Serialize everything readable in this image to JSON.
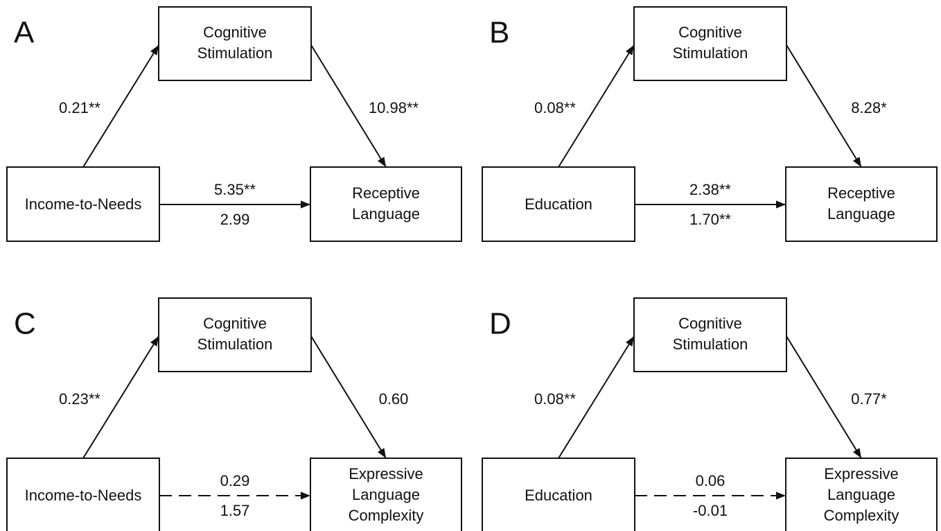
{
  "panels": [
    {
      "letter": "A",
      "predictor": [
        "Income-to-Needs"
      ],
      "mediator": [
        "Cognitive",
        "Stimulation"
      ],
      "outcome": [
        "Receptive",
        "Language"
      ],
      "a": "0.21**",
      "b": "10.98**",
      "c": "5.35**",
      "c_prime": "2.99",
      "direct_path_style": "solid"
    },
    {
      "letter": "B",
      "predictor": [
        "Education"
      ],
      "mediator": [
        "Cognitive",
        "Stimulation"
      ],
      "outcome": [
        "Receptive",
        "Language"
      ],
      "a": "0.08**",
      "b": "8.28*",
      "c": "2.38**",
      "c_prime": "1.70**",
      "direct_path_style": "solid"
    },
    {
      "letter": "C",
      "predictor": [
        "Income-to-Needs"
      ],
      "mediator": [
        "Cognitive",
        "Stimulation"
      ],
      "outcome": [
        "Expressive",
        "Language",
        "Complexity"
      ],
      "a": "0.23**",
      "b": "0.60",
      "c": "0.29",
      "c_prime": "1.57",
      "direct_path_style": "dashed"
    },
    {
      "letter": "D",
      "predictor": [
        "Education"
      ],
      "mediator": [
        "Cognitive",
        "Stimulation"
      ],
      "outcome": [
        "Expressive",
        "Language",
        "Complexity"
      ],
      "a": "0.08**",
      "b": "0.77*",
      "c": "0.06",
      "c_prime": "-0.01",
      "direct_path_style": "dashed"
    }
  ]
}
